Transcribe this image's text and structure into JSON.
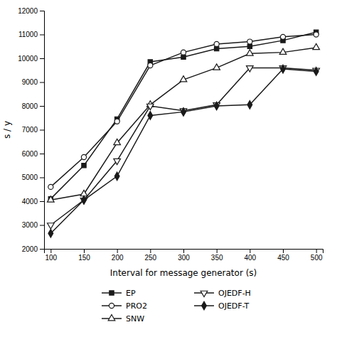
{
  "chart_data": {
    "type": "line",
    "x": [
      100,
      150,
      200,
      250,
      300,
      350,
      400,
      450,
      500
    ],
    "series": [
      {
        "name": "EP",
        "color": "#1a1a1a",
        "marker": "square",
        "values": [
          4100,
          5500,
          7450,
          9850,
          10050,
          10400,
          10500,
          10750,
          11100
        ]
      },
      {
        "name": "PRO2",
        "color": "#1a1a1a",
        "marker": "circle-open",
        "values": [
          4600,
          5850,
          7350,
          9700,
          10250,
          10600,
          10700,
          10900,
          11000
        ]
      },
      {
        "name": "SNW",
        "color": "#1a1a1a",
        "marker": "triangle-up-open",
        "values": [
          4050,
          4300,
          6450,
          8050,
          9100,
          9600,
          10200,
          10250,
          10450
        ]
      },
      {
        "name": "OJEDF-H",
        "color": "#1a1a1a",
        "marker": "triangle-down-open",
        "values": [
          3000,
          4050,
          5700,
          8000,
          7800,
          8050,
          9600,
          9600,
          9500
        ]
      },
      {
        "name": "OJEDF-T",
        "color": "#1a1a1a",
        "marker": "diamond",
        "values": [
          2650,
          4050,
          5050,
          7600,
          7750,
          8000,
          8050,
          9550,
          9450
        ]
      }
    ],
    "xlabel": "Interval for message generator (s)",
    "ylabel": "s / y",
    "xlim": [
      90,
      510
    ],
    "ylim": [
      2000,
      12000
    ],
    "xticks": [
      100,
      150,
      200,
      250,
      300,
      350,
      400,
      450,
      500
    ],
    "yticks": [
      2000,
      3000,
      4000,
      5000,
      6000,
      7000,
      8000,
      9000,
      10000,
      11000,
      12000
    ],
    "grid": false,
    "legend": "bottom"
  }
}
